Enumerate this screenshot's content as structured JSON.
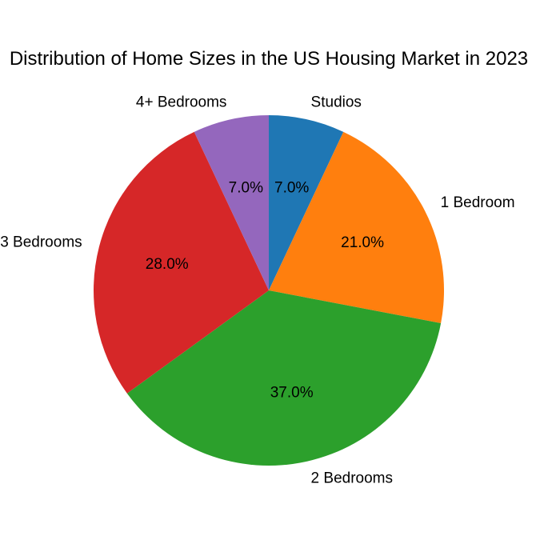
{
  "chart_data": {
    "type": "pie",
    "title": "Distribution of Home Sizes in the US Housing Market in 2023",
    "categories": [
      "Studios",
      "1 Bedroom",
      "2 Bedrooms",
      "3 Bedrooms",
      "4+ Bedrooms"
    ],
    "values": [
      7.0,
      21.0,
      37.0,
      28.0,
      7.0
    ],
    "percent_labels": [
      "7.0%",
      "21.0%",
      "37.0%",
      "28.0%",
      "7.0%"
    ],
    "colors": [
      "#1f77b4",
      "#ff7f0e",
      "#2ca02c",
      "#d62728",
      "#9467bd"
    ],
    "start_angle_deg": 90,
    "direction": "clockwise",
    "legend": "none"
  }
}
